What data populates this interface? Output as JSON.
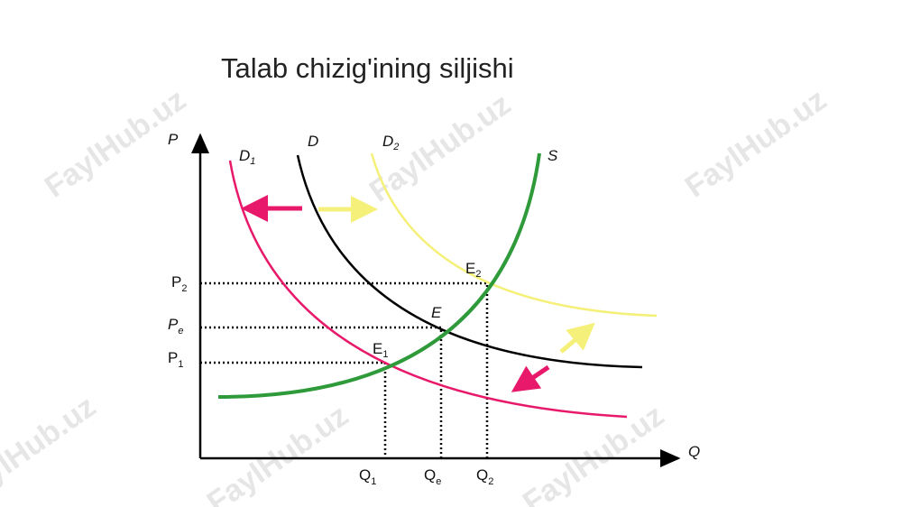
{
  "title": "Talab chizig'ining siljishi",
  "axes": {
    "y": "P",
    "x": "Q"
  },
  "curves": [
    {
      "main": "D",
      "sub": "1"
    },
    {
      "main": "D"
    },
    {
      "main": "D",
      "sub": "2"
    },
    {
      "main": "S"
    }
  ],
  "points": [
    {
      "main": "E",
      "sub": "1"
    },
    {
      "main": "E"
    },
    {
      "main": "E",
      "sub": "2"
    }
  ],
  "price_levels": [
    {
      "main": "P",
      "sub": "2"
    },
    {
      "main": "P",
      "sub": "e"
    },
    {
      "main": "P",
      "sub": "1"
    }
  ],
  "quantity_levels": [
    {
      "main": "Q",
      "sub": "1"
    },
    {
      "main": "Q",
      "sub": "e"
    },
    {
      "main": "Q",
      "sub": "2"
    }
  ],
  "watermark": "FaylHub.uz"
}
